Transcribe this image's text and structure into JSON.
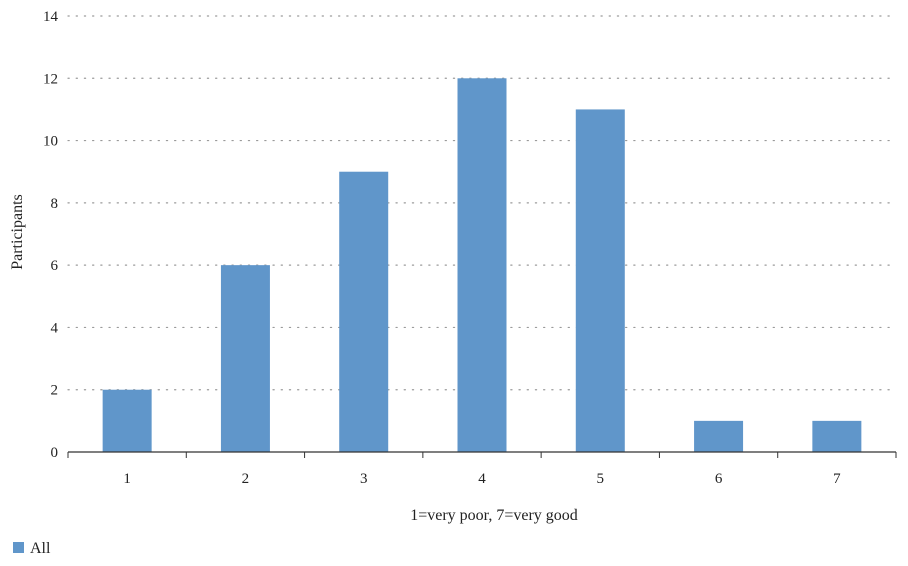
{
  "chart_data": {
    "type": "bar",
    "categories": [
      "1",
      "2",
      "3",
      "4",
      "5",
      "6",
      "7"
    ],
    "series": [
      {
        "name": "All",
        "values": [
          2,
          6,
          9,
          12,
          11,
          1,
          1
        ],
        "color": "#6096CA"
      }
    ],
    "title": "",
    "xlabel": "1=very poor, 7=very good",
    "ylabel": "Participants",
    "ylim": [
      0,
      14
    ],
    "yticks": [
      "0",
      "2",
      "4",
      "6",
      "8",
      "10",
      "12",
      "14"
    ],
    "grid": "horizontal-dotted",
    "legend_position": "bottom-left"
  },
  "colors": {
    "bar": "#6096CA",
    "grid": "#9a9a9a",
    "axis": "#333333"
  }
}
